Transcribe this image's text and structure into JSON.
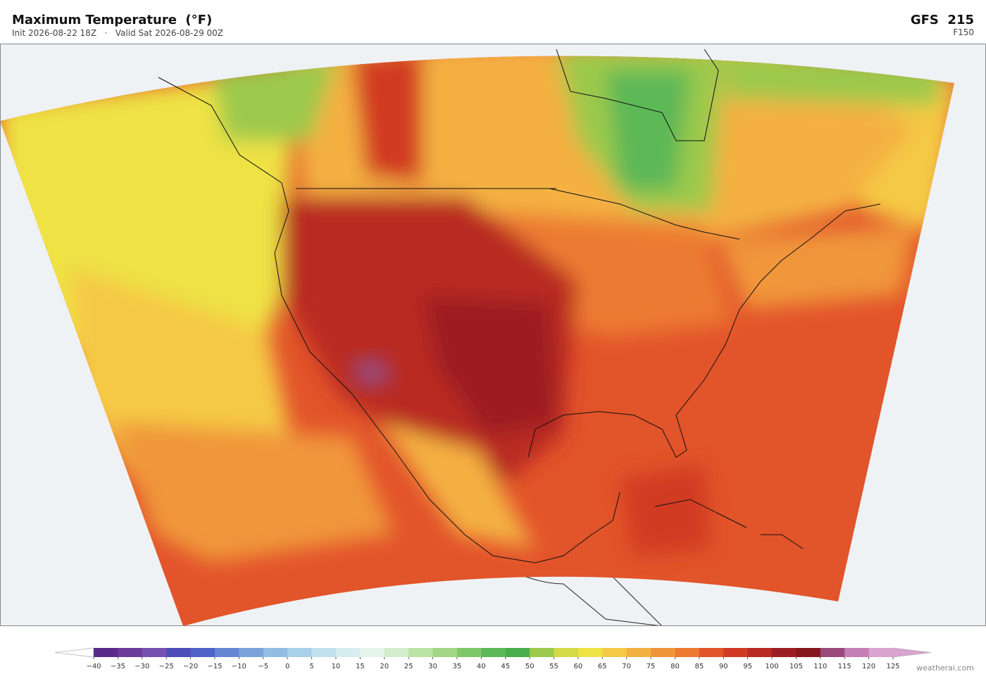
{
  "header": {
    "title": "Maximum Temperature  (°F)",
    "subtitle": "Init 2026-08-22 18Z   ·   Valid Sat 2026-08-29 00Z",
    "model": "GFS  215",
    "forecast_hour": "F150"
  },
  "colorbar": {
    "ticks": [
      {
        "value": -40,
        "label": "−40"
      },
      {
        "value": -35,
        "label": "−35"
      },
      {
        "value": -30,
        "label": "−30"
      },
      {
        "value": -25,
        "label": "−25"
      },
      {
        "value": -20,
        "label": "−20"
      },
      {
        "value": -15,
        "label": "−15"
      },
      {
        "value": -10,
        "label": "−10"
      },
      {
        "value": -5,
        "label": "−5"
      },
      0,
      5,
      10,
      15,
      20,
      25,
      30,
      35,
      40,
      45,
      50,
      55,
      60,
      65,
      70,
      75,
      80,
      85,
      90,
      95,
      100,
      105,
      110,
      115,
      120,
      125
    ],
    "colors": [
      "#5a2a8a",
      "#6b3a9c",
      "#7650b0",
      "#4e4cb8",
      "#4f62c8",
      "#6585d2",
      "#7ba2da",
      "#93bce2",
      "#a9d0e9",
      "#c2e2ef",
      "#d6eef2",
      "#e6f4ee",
      "#d4edcc",
      "#bce3a6",
      "#a2d686",
      "#7fc86a",
      "#5db857",
      "#4aad4b",
      "#9cc94b",
      "#d3da45",
      "#eee245",
      "#f5c945",
      "#f4b143",
      "#f0963a",
      "#ec7a31",
      "#e2542a",
      "#d13b24",
      "#b92a22",
      "#9c1e22",
      "#85181d",
      "#9a4a7a",
      "#c47fb4",
      "#d9a4cf"
    ],
    "extend_colors": [
      "#ffffff",
      "#d9a4cf"
    ]
  },
  "credit": "weatherai.com"
}
